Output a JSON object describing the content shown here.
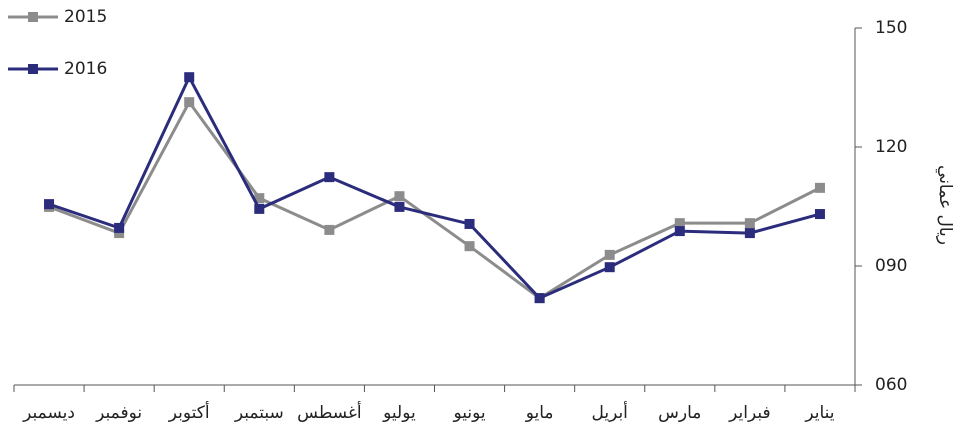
{
  "chart_data": {
    "type": "line",
    "y_label": "ريال عماني",
    "categories": [
      "ديسمبر",
      "نوفمبر",
      "أكتوبر",
      "سبتمبر",
      "أغسطس",
      "يوليو",
      "يونيو",
      "مايو",
      "أبريل",
      "مارس",
      "فبراير",
      "يناير"
    ],
    "series": [
      {
        "name": "2015",
        "color": "#8c8c8c",
        "values": [
          104.9,
          98.3,
          131.3,
          107.1,
          99.1,
          107.6,
          95.0,
          81.9,
          92.8,
          100.8,
          100.8,
          109.7
        ]
      },
      {
        "name": "2016",
        "color": "#2b2d7c",
        "values": [
          105.6,
          99.6,
          137.6,
          104.4,
          112.4,
          104.9,
          100.6,
          81.9,
          89.7,
          98.8,
          98.3,
          103.1
        ]
      }
    ],
    "ylim": [
      60,
      150
    ],
    "yticks": [
      {
        "value": 60,
        "label": "060"
      },
      {
        "value": 90,
        "label": "090"
      },
      120,
      150
    ],
    "legend": "top-left"
  }
}
